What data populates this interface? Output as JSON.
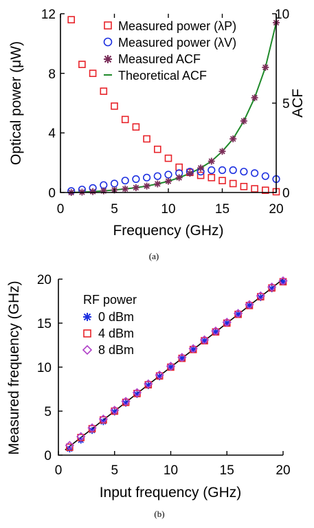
{
  "chart_data": [
    {
      "panel": "(a)",
      "type": "scatter",
      "xlabel": "Frequency (GHz)",
      "ylabel": "Optical power (μW)",
      "y2label": "ACF",
      "xlim": [
        0,
        20
      ],
      "ylim": [
        0,
        12
      ],
      "y2lim": [
        0,
        10
      ],
      "xticks": [
        "0",
        "5",
        "10",
        "15",
        "20"
      ],
      "yticks": [
        "0",
        "4",
        "8",
        "12"
      ],
      "y2ticks": [
        "0",
        "5",
        "10"
      ],
      "legend_position": "top-right",
      "series": [
        {
          "name": "Measured power (λP)",
          "marker": "square",
          "color": "#e8232a",
          "axis": "left",
          "x": [
            1,
            2,
            3,
            4,
            5,
            6,
            7,
            8,
            9,
            10,
            11,
            12,
            13,
            14,
            15,
            16,
            17,
            18,
            19,
            20
          ],
          "y": [
            11.6,
            8.6,
            8.0,
            6.8,
            5.8,
            4.9,
            4.4,
            3.6,
            2.9,
            2.3,
            1.7,
            1.35,
            1.15,
            1.0,
            0.8,
            0.6,
            0.4,
            0.25,
            0.15,
            0.05
          ]
        },
        {
          "name": "Measured power (λV)",
          "marker": "circle",
          "color": "#1c2fe0",
          "axis": "left",
          "x": [
            1,
            2,
            3,
            4,
            5,
            6,
            7,
            8,
            9,
            10,
            11,
            12,
            13,
            14,
            15,
            16,
            17,
            18,
            19,
            20
          ],
          "y": [
            0.1,
            0.2,
            0.3,
            0.5,
            0.6,
            0.8,
            0.9,
            1.0,
            1.1,
            1.2,
            1.3,
            1.4,
            1.4,
            1.5,
            1.5,
            1.5,
            1.4,
            1.3,
            1.1,
            0.9
          ]
        },
        {
          "name": "Measured ACF",
          "marker": "asterisk",
          "color": "#7a2c58",
          "axis": "right",
          "x": [
            1,
            2,
            3,
            4,
            5,
            6,
            7,
            8,
            9,
            10,
            11,
            12,
            13,
            14,
            15,
            16,
            17,
            18,
            19,
            20
          ],
          "y": [
            0.0,
            0.02,
            0.05,
            0.09,
            0.14,
            0.2,
            0.27,
            0.36,
            0.48,
            0.63,
            0.83,
            1.07,
            1.37,
            1.75,
            2.3,
            3.0,
            4.0,
            5.3,
            7.0,
            9.5
          ]
        },
        {
          "name": "Theoretical ACF",
          "line": true,
          "color": "#1f8a2a",
          "axis": "right",
          "x": [
            1,
            2,
            3,
            4,
            5,
            6,
            7,
            8,
            9,
            10,
            11,
            12,
            13,
            14,
            15,
            16,
            17,
            18,
            19,
            20
          ],
          "y": [
            0.0,
            0.02,
            0.05,
            0.09,
            0.14,
            0.2,
            0.27,
            0.36,
            0.48,
            0.63,
            0.83,
            1.07,
            1.37,
            1.75,
            2.3,
            3.0,
            4.0,
            5.3,
            7.0,
            9.5
          ]
        }
      ]
    },
    {
      "panel": "(b)",
      "type": "scatter",
      "xlabel": "Input frequency (GHz)",
      "ylabel": "Measured frequency (GHz)",
      "xlim": [
        0,
        20
      ],
      "ylim": [
        0,
        20
      ],
      "xticks": [
        "0",
        "5",
        "10",
        "15",
        "20"
      ],
      "yticks": [
        "0",
        "5",
        "10",
        "15",
        "20"
      ],
      "legend_title": "RF power",
      "legend_position": "top-left",
      "series": [
        {
          "name": "0 dBm",
          "marker": "asterisk",
          "color": "#1c2fe0",
          "x": [
            1,
            2,
            3,
            4,
            5,
            6,
            7,
            8,
            9,
            10,
            11,
            12,
            13,
            14,
            15,
            16,
            17,
            18,
            19,
            20
          ],
          "y": [
            0.7,
            1.7,
            2.8,
            3.8,
            4.9,
            5.9,
            6.9,
            7.9,
            8.9,
            10.0,
            11.0,
            12.0,
            13.0,
            14.0,
            15.0,
            16.0,
            17.0,
            17.9,
            18.9,
            19.7
          ]
        },
        {
          "name": "4 dBm",
          "marker": "square",
          "color": "#e8232a",
          "x": [
            1,
            2,
            3,
            4,
            5,
            6,
            7,
            8,
            9,
            10,
            11,
            12,
            13,
            14,
            15,
            16,
            17,
            18,
            19,
            20
          ],
          "y": [
            0.9,
            2.0,
            3.0,
            4.0,
            5.0,
            6.0,
            7.0,
            8.0,
            9.0,
            10.0,
            11.0,
            12.0,
            13.0,
            14.0,
            15.0,
            16.0,
            17.0,
            18.0,
            19.0,
            19.7
          ]
        },
        {
          "name": "8 dBm",
          "marker": "diamond",
          "color": "#b040c8",
          "x": [
            1,
            2,
            3,
            4,
            5,
            6,
            7,
            8,
            9,
            10,
            11,
            12,
            13,
            14,
            15,
            16,
            17,
            18,
            19,
            20
          ],
          "y": [
            1.1,
            2.1,
            3.1,
            4.1,
            5.1,
            6.1,
            7.1,
            8.1,
            9.1,
            10.1,
            11.1,
            12.1,
            13.1,
            14.1,
            15.1,
            16.1,
            17.1,
            18.1,
            19.1,
            19.8
          ]
        },
        {
          "line": true,
          "color": "#000000",
          "x": [
            0.6,
            20
          ],
          "y": [
            0.6,
            20
          ]
        }
      ]
    }
  ]
}
